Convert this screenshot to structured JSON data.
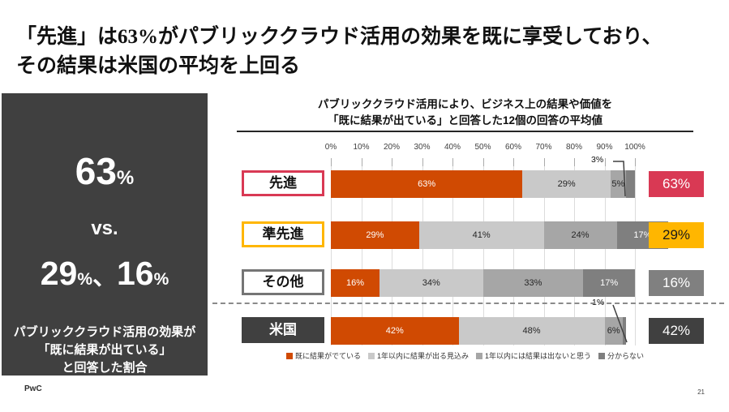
{
  "header": {
    "title_line1": "「先進」は63%がパブリッククラウド活用の効果を既に享受しており、",
    "title_line2": "その結果は米国の平均を上回る"
  },
  "left_panel": {
    "stat_primary": {
      "number": "63",
      "unit": "%"
    },
    "vs_label": "vs.",
    "stat_secondary": {
      "number1": "29",
      "unit1": "%",
      "separator": "、",
      "number2": "16",
      "unit2": "%"
    },
    "caption_line1": "パブリッククラウド活用の効果が",
    "caption_line2": "「既に結果が出ている」",
    "caption_line3": "と回答した割合"
  },
  "chart_data": {
    "type": "bar",
    "orientation": "horizontal-stacked",
    "title": "パブリッククラウド活用により、ビジネス上の結果や価値を「既に結果が出ている」と回答した12個の回答の平均値",
    "title_lines": [
      "パブリッククラウド活用により、ビジネス上の結果や価値を",
      "「既に結果が出ている」と回答した12個の回答の平均値"
    ],
    "categories": [
      "先進",
      "準先進",
      "その他",
      "米国"
    ],
    "series": [
      {
        "name": "既に結果がでている",
        "color": "#D04A02",
        "label_color": "#ffffff",
        "values": [
          63,
          29,
          16,
          42
        ]
      },
      {
        "name": "1年以内に結果が出る見込み",
        "color": "#C9C9C9",
        "label_color": "#262626",
        "values": [
          29,
          41,
          34,
          48
        ]
      },
      {
        "name": "1年以内には結果は出ないと思う",
        "color": "#A6A6A6",
        "label_color": "#262626",
        "values": [
          5,
          24,
          33,
          6
        ]
      },
      {
        "name": "分からない",
        "color": "#7F7F7F",
        "label_color": "#ffffff",
        "values": [
          3,
          17,
          17,
          1
        ]
      }
    ],
    "x_ticks": [
      "0%",
      "10%",
      "20%",
      "30%",
      "40%",
      "50%",
      "60%",
      "70%",
      "80%",
      "90%",
      "100%"
    ],
    "xlim": [
      0,
      100
    ],
    "grid": true,
    "legend_position": "bottom",
    "callouts": [
      {
        "row": 0,
        "label": "3%"
      },
      {
        "row": 3,
        "label": "1%"
      }
    ]
  },
  "presentation": {
    "rows": [
      {
        "box": "outline",
        "color": "#D93954",
        "badge_label": "63%",
        "badge_bg": "#D93954",
        "badge_fg": "#ffffff"
      },
      {
        "box": "outline",
        "color": "#FFB600",
        "badge_label": "29%",
        "badge_bg": "#FFB600",
        "badge_fg": "#1a1a1a"
      },
      {
        "box": "outline",
        "color": "#757575",
        "badge_label": "16%",
        "badge_bg": "#808080",
        "badge_fg": "#ffffff"
      },
      {
        "box": "filled",
        "color": "#404040",
        "badge_label": "42%",
        "badge_bg": "#404040",
        "badge_fg": "#ffffff"
      }
    ]
  },
  "footer": {
    "logo": "PwC",
    "page_number": "21"
  },
  "colors": {
    "accent_orange": "#D04A02",
    "accent_rose": "#D93954",
    "accent_amber": "#FFB600",
    "panel_dark": "#404040",
    "gray_light": "#C9C9C9",
    "gray_mid": "#A6A6A6",
    "gray_dark": "#7F7F7F"
  }
}
